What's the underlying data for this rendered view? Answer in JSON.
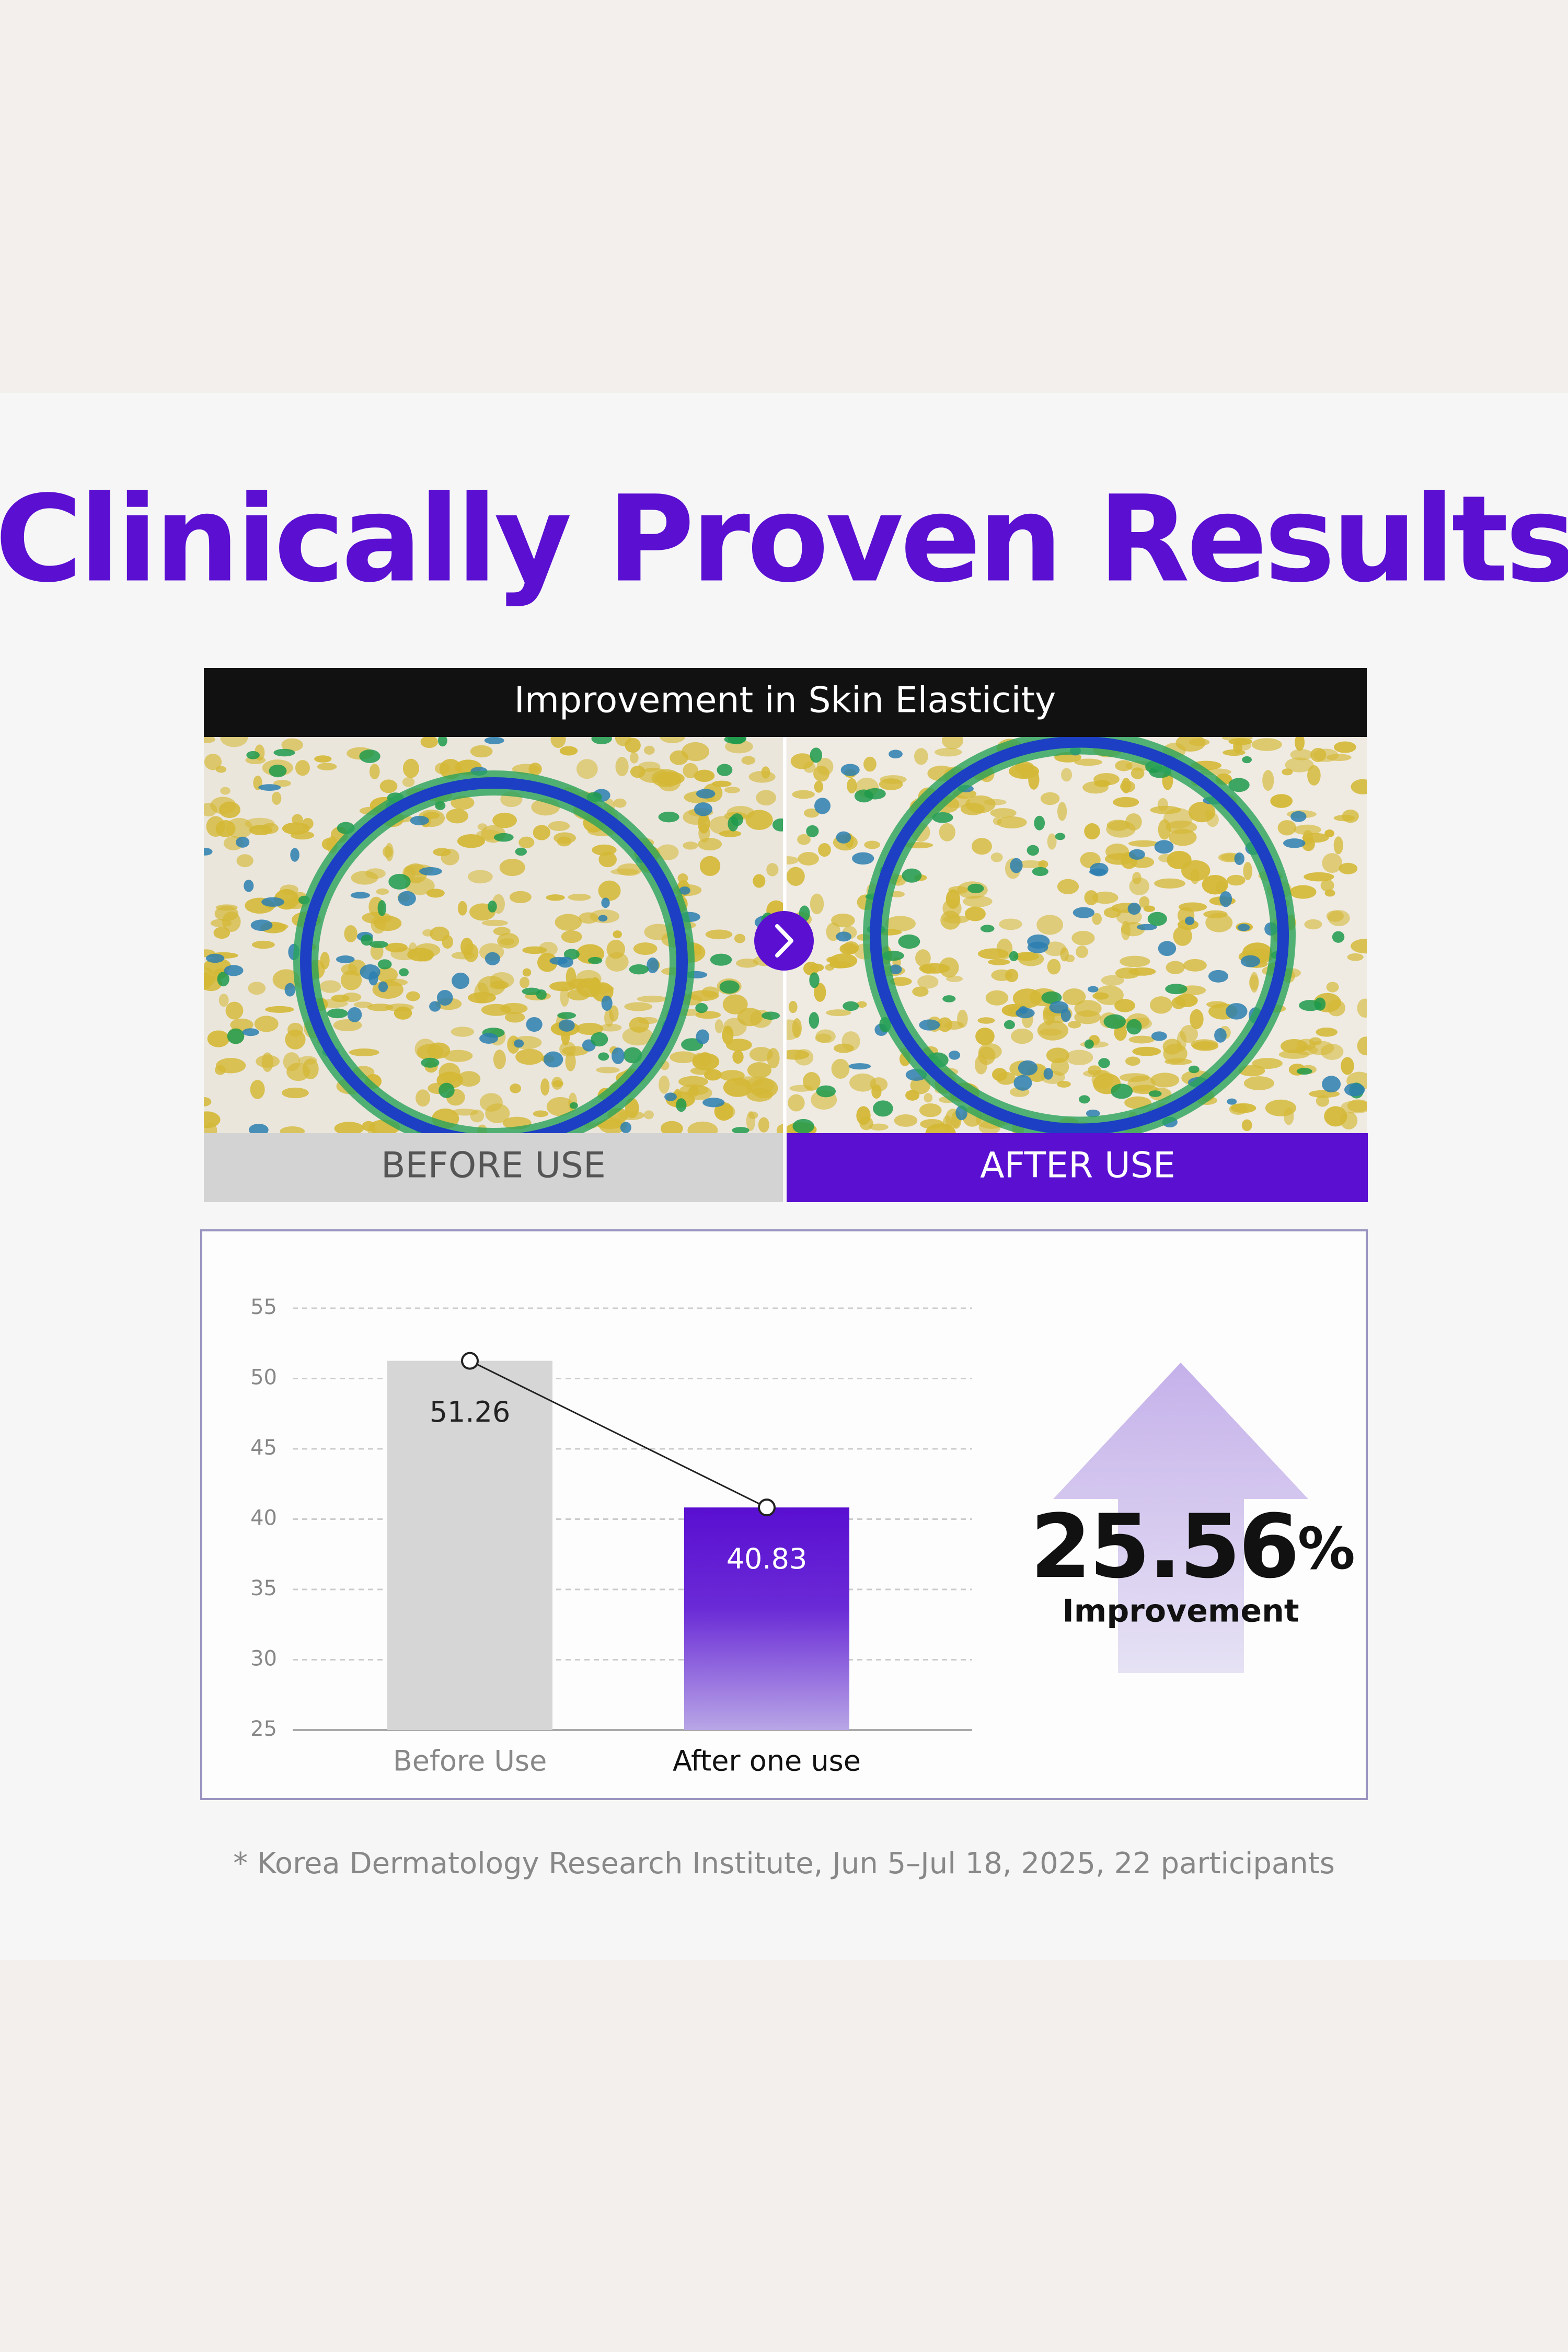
{
  "title": "Clinically Proven Results",
  "panel": {
    "heading": "Improvement in Skin Elasticity",
    "before_label": "BEFORE USE",
    "after_label": "AFTER USE"
  },
  "chart_data": {
    "type": "bar",
    "categories": [
      "Before Use",
      "After one use"
    ],
    "values": [
      51.26,
      40.83
    ],
    "colors": [
      "#d6d6d6",
      "#5a0fd1"
    ],
    "ylim": [
      25,
      55
    ],
    "yticks": [
      25,
      30,
      35,
      40,
      45,
      50,
      55
    ],
    "grid": true,
    "connector": true
  },
  "highlight": {
    "value": 25.56,
    "unit": "%",
    "label": "Improvement"
  },
  "footnote": "* Korea Dermatology Research Institute, Jun 5–Jul 18, 2025, 22 participants"
}
